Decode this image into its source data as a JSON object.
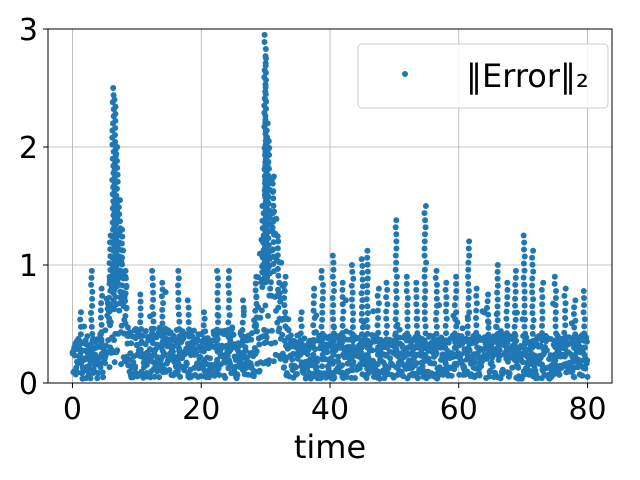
{
  "chart_data": {
    "type": "scatter",
    "title": "",
    "xlabel": "time",
    "ylabel": "",
    "xlim": [
      -3.8,
      83.8
    ],
    "ylim": [
      0,
      3
    ],
    "xticks": [
      0,
      20,
      40,
      60,
      80
    ],
    "yticks": [
      0,
      1,
      2,
      3
    ],
    "grid": true,
    "legend_position": "top-right",
    "series": [
      {
        "name": "‖Error‖₂",
        "color": "#1f77b4",
        "sampling": {
          "x_start": 0,
          "x_end": 80,
          "count": 1600
        },
        "baseline": [
          [
            0,
            0.22
          ],
          [
            5,
            0.25
          ],
          [
            6,
            0.55
          ],
          [
            7,
            0.85
          ],
          [
            8,
            0.6
          ],
          [
            9,
            0.28
          ],
          [
            28,
            0.26
          ],
          [
            29.5,
            0.8
          ],
          [
            31,
            1.0
          ],
          [
            32.5,
            0.6
          ],
          [
            34,
            0.24
          ],
          [
            80,
            0.24
          ]
        ],
        "spikes": [
          {
            "x": 1.2,
            "y": 0.6
          },
          {
            "x": 3.0,
            "y": 0.95
          },
          {
            "x": 4.5,
            "y": 0.8
          },
          {
            "x": 5.8,
            "y": 1.25
          },
          {
            "x": 6.3,
            "y": 2.5
          },
          {
            "x": 6.6,
            "y": 2.4
          },
          {
            "x": 6.9,
            "y": 2.0
          },
          {
            "x": 7.3,
            "y": 1.55
          },
          {
            "x": 7.8,
            "y": 1.3
          },
          {
            "x": 8.3,
            "y": 0.95
          },
          {
            "x": 10.5,
            "y": 0.75
          },
          {
            "x": 12.5,
            "y": 0.95
          },
          {
            "x": 14.0,
            "y": 0.85
          },
          {
            "x": 16.5,
            "y": 0.95
          },
          {
            "x": 18.0,
            "y": 0.7
          },
          {
            "x": 20.5,
            "y": 0.6
          },
          {
            "x": 22.5,
            "y": 0.95
          },
          {
            "x": 24.3,
            "y": 0.95
          },
          {
            "x": 26.5,
            "y": 0.7
          },
          {
            "x": 28.5,
            "y": 0.9
          },
          {
            "x": 29.6,
            "y": 1.5
          },
          {
            "x": 29.9,
            "y": 2.95
          },
          {
            "x": 30.0,
            "y": 2.75
          },
          {
            "x": 30.2,
            "y": 2.2
          },
          {
            "x": 30.5,
            "y": 2.05
          },
          {
            "x": 31.2,
            "y": 1.75
          },
          {
            "x": 32.0,
            "y": 1.2
          },
          {
            "x": 33.0,
            "y": 0.9
          },
          {
            "x": 35.5,
            "y": 0.6
          },
          {
            "x": 37.5,
            "y": 0.8
          },
          {
            "x": 38.8,
            "y": 0.95
          },
          {
            "x": 40.5,
            "y": 1.08
          },
          {
            "x": 42.0,
            "y": 0.85
          },
          {
            "x": 43.5,
            "y": 1.0
          },
          {
            "x": 45.0,
            "y": 1.05
          },
          {
            "x": 45.8,
            "y": 1.12
          },
          {
            "x": 47.5,
            "y": 0.8
          },
          {
            "x": 48.8,
            "y": 0.85
          },
          {
            "x": 50.3,
            "y": 1.38
          },
          {
            "x": 52.0,
            "y": 0.9
          },
          {
            "x": 53.5,
            "y": 0.85
          },
          {
            "x": 54.8,
            "y": 1.5
          },
          {
            "x": 56.5,
            "y": 0.95
          },
          {
            "x": 58.0,
            "y": 0.85
          },
          {
            "x": 59.5,
            "y": 0.9
          },
          {
            "x": 61.5,
            "y": 1.2
          },
          {
            "x": 62.8,
            "y": 0.8
          },
          {
            "x": 64.5,
            "y": 0.75
          },
          {
            "x": 66.0,
            "y": 1.0
          },
          {
            "x": 67.5,
            "y": 0.85
          },
          {
            "x": 68.8,
            "y": 0.95
          },
          {
            "x": 70.2,
            "y": 1.25
          },
          {
            "x": 71.5,
            "y": 1.12
          },
          {
            "x": 73.0,
            "y": 0.85
          },
          {
            "x": 75.0,
            "y": 0.9
          },
          {
            "x": 76.5,
            "y": 0.8
          },
          {
            "x": 78.0,
            "y": 0.7
          },
          {
            "x": 79.5,
            "y": 0.78
          }
        ]
      }
    ]
  }
}
